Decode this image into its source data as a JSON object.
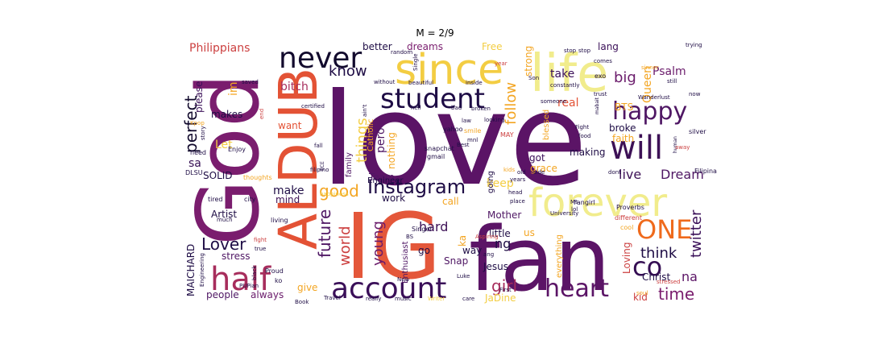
{
  "title": "M = 2/9",
  "words": [
    {
      "text": "love",
      "color": "#5b1466",
      "size": 158
    },
    {
      "text": "God",
      "color": "#7a1d6e",
      "size": 106
    },
    {
      "text": "IG",
      "color": "#e4573a",
      "size": 112
    },
    {
      "text": "fan",
      "color": "#5b1466",
      "size": 110
    },
    {
      "text": "ALDUB",
      "color": "#e35235",
      "size": 66
    },
    {
      "text": "life",
      "color": "#f1ec8c",
      "size": 64
    },
    {
      "text": "since",
      "color": "#f3cd42",
      "size": 52
    },
    {
      "text": "forever",
      "color": "#f1ec8c",
      "size": 48
    },
    {
      "text": "half",
      "color": "#a72d5c",
      "size": 40
    },
    {
      "text": "account",
      "color": "#3a0f58",
      "size": 36
    },
    {
      "text": "never",
      "color": "#120a2d",
      "size": 36
    },
    {
      "text": "student",
      "color": "#1e0c45",
      "size": 34
    },
    {
      "text": "happy",
      "color": "#4f1764",
      "size": 30
    },
    {
      "text": "will",
      "color": "#3d1156",
      "size": 40
    },
    {
      "text": "heart",
      "color": "#5b1466",
      "size": 30
    },
    {
      "text": "ONE",
      "color": "#ef6a1c",
      "size": 32
    },
    {
      "text": "co",
      "color": "#350e53",
      "size": 32
    },
    {
      "text": "Instagram",
      "color": "#1e0c45",
      "size": 24
    },
    {
      "text": "perfect",
      "color": "#120a2d",
      "size": 20
    },
    {
      "text": "future",
      "color": "#4f1764",
      "size": 20
    },
    {
      "text": "Lover",
      "color": "#1e0c45",
      "size": 20
    },
    {
      "text": "good",
      "color": "#f3a522",
      "size": 20
    },
    {
      "text": "girl",
      "color": "#a72d5c",
      "size": 20
    },
    {
      "text": "time",
      "color": "#7a1d6e",
      "size": 20
    },
    {
      "text": "big",
      "color": "#6a1b6b",
      "size": 18
    },
    {
      "text": "know",
      "color": "#1e0c45",
      "size": 18
    },
    {
      "text": "follow",
      "color": "#f3a522",
      "size": 18
    },
    {
      "text": "things",
      "color": "#f3cd42",
      "size": 18
    },
    {
      "text": "world",
      "color": "#cc4040",
      "size": 18
    },
    {
      "text": "young",
      "color": "#6a1b6b",
      "size": 18
    },
    {
      "text": "twitter",
      "color": "#3a0f58",
      "size": 18
    },
    {
      "text": "think",
      "color": "#1e0c45",
      "size": 18
    },
    {
      "text": "Dream",
      "color": "#4f1764",
      "size": 16
    },
    {
      "text": "live",
      "color": "#3d1156",
      "size": 16
    },
    {
      "text": "hard",
      "color": "#3d1156",
      "size": 16
    },
    {
      "text": "ng",
      "color": "#1e0c45",
      "size": 16
    },
    {
      "text": "na",
      "color": "#5b1466",
      "size": 16
    },
    {
      "text": "take",
      "color": "#3a0f58",
      "size": 14
    },
    {
      "text": "Queen",
      "color": "#f3a522",
      "size": 14
    },
    {
      "text": "bitch",
      "color": "#a72d5c",
      "size": 14
    },
    {
      "text": "Psalm",
      "color": "#6a1b6b",
      "size": 14
    },
    {
      "text": "dreams",
      "color": "#7a1d6e",
      "size": 12
    },
    {
      "text": "Philippians",
      "color": "#cc4040",
      "size": 14
    },
    {
      "text": "better",
      "color": "#1e0c45",
      "size": 12
    },
    {
      "text": "Free",
      "color": "#f3cd42",
      "size": 12
    },
    {
      "text": "lang",
      "color": "#3a0f58",
      "size": 12
    },
    {
      "text": "strong",
      "color": "#f3a522",
      "size": 12
    },
    {
      "text": "real",
      "color": "#e35235",
      "size": 14
    },
    {
      "text": "BTS",
      "color": "#f3a522",
      "size": 12
    },
    {
      "text": "please",
      "color": "#3a0f58",
      "size": 12
    },
    {
      "text": "im",
      "color": "#f3a522",
      "size": 14
    },
    {
      "text": "makes",
      "color": "#1e0c45",
      "size": 12
    },
    {
      "text": "want",
      "color": "#e35235",
      "size": 12
    },
    {
      "text": "Let",
      "color": "#f3cd42",
      "size": 14
    },
    {
      "text": "sa",
      "color": "#350e53",
      "size": 14
    },
    {
      "text": "SOLID",
      "color": "#1e0c45",
      "size": 12
    },
    {
      "text": "make",
      "color": "#1e0c45",
      "size": 14
    },
    {
      "text": "mind",
      "color": "#3d1156",
      "size": 12
    },
    {
      "text": "pero",
      "color": "#4f1764",
      "size": 14
    },
    {
      "text": "nothing",
      "color": "#f3a522",
      "size": 12
    },
    {
      "text": "Team",
      "color": "#4f1764",
      "size": 12
    },
    {
      "text": "keep",
      "color": "#f3cd42",
      "size": 14
    },
    {
      "text": "got",
      "color": "#3a0f58",
      "size": 12
    },
    {
      "text": "grace",
      "color": "#f3a522",
      "size": 12
    },
    {
      "text": "faith",
      "color": "#f3a522",
      "size": 12
    },
    {
      "text": "broke",
      "color": "#1e0c45",
      "size": 12
    },
    {
      "text": "making",
      "color": "#1e0c45",
      "size": 12
    },
    {
      "text": "blessed",
      "color": "#f3a522",
      "size": 10
    },
    {
      "text": "Artist",
      "color": "#1e0c45",
      "size": 12
    },
    {
      "text": "work",
      "color": "#1e0c45",
      "size": 12
    },
    {
      "text": "call",
      "color": "#f3a522",
      "size": 12
    },
    {
      "text": "Mother",
      "color": "#4f1764",
      "size": 12
    },
    {
      "text": "little",
      "color": "#1e0c45",
      "size": 12
    },
    {
      "text": "us",
      "color": "#f3a522",
      "size": 12
    },
    {
      "text": "ka",
      "color": "#f3a522",
      "size": 12
    },
    {
      "text": "go",
      "color": "#1e0c45",
      "size": 12
    },
    {
      "text": "way",
      "color": "#1e0c45",
      "size": 12
    },
    {
      "text": "Snap",
      "color": "#4f1764",
      "size": 12
    },
    {
      "text": "Jesus",
      "color": "#1e0c45",
      "size": 12
    },
    {
      "text": "Enthusiast",
      "color": "#4f1764",
      "size": 10
    },
    {
      "text": "Loving",
      "color": "#cc4040",
      "size": 12
    },
    {
      "text": "everything",
      "color": "#f3a522",
      "size": 10
    },
    {
      "text": "Christ",
      "color": "#1e0c45",
      "size": 12
    },
    {
      "text": "kid",
      "color": "#cc4040",
      "size": 12
    },
    {
      "text": "JaDine",
      "color": "#f3cd42",
      "size": 12
    },
    {
      "text": "give",
      "color": "#f3a522",
      "size": 12
    },
    {
      "text": "people",
      "color": "#4f1764",
      "size": 12
    },
    {
      "text": "always",
      "color": "#6a1b6b",
      "size": 12
    },
    {
      "text": "stress",
      "color": "#4f1764",
      "size": 12
    },
    {
      "text": "MAICHARD",
      "color": "#1e0c45",
      "size": 12
    },
    {
      "text": "going",
      "color": "#1e0c45",
      "size": 10
    },
    {
      "text": "Engineer",
      "color": "#1e0c45",
      "size": 10
    },
    {
      "text": "snapchat",
      "color": "#1e0c45",
      "size": 8
    },
    {
      "text": "gmail",
      "color": "#1e0c45",
      "size": 8
    },
    {
      "text": "family",
      "color": "#4f1764",
      "size": 10
    },
    {
      "text": "Catholic",
      "color": "#f3a522",
      "size": 10
    },
    {
      "text": "yahoo",
      "color": "#1e0c45",
      "size": 8
    },
    {
      "text": "smile",
      "color": "#f3a522",
      "size": 8
    },
    {
      "text": "MAY",
      "color": "#cc4040",
      "size": 8
    },
    {
      "text": "Fangirl",
      "color": "#1e0c45",
      "size": 8
    },
    {
      "text": "Proverbs",
      "color": "#1e0c45",
      "size": 8
    },
    {
      "text": "University",
      "color": "#1e0c45",
      "size": 7
    },
    {
      "text": "Singer",
      "color": "#1e0c45",
      "size": 8
    },
    {
      "text": "Aspiring",
      "color": "#cc4040",
      "size": 7
    },
    {
      "text": "Ms",
      "color": "#1e0c45",
      "size": 7
    },
    {
      "text": "lol",
      "color": "#1e0c45",
      "size": 7
    },
    {
      "text": "silver",
      "color": "#1e0c45",
      "size": 8
    },
    {
      "text": "Filipina",
      "color": "#1e0c45",
      "size": 8
    },
    {
      "text": "different",
      "color": "#cc4040",
      "size": 8
    },
    {
      "text": "cool",
      "color": "#f3a522",
      "size": 8
    },
    {
      "text": "stressed",
      "color": "#cc4040",
      "size": 7
    },
    {
      "text": "soul",
      "color": "#f3a522",
      "size": 7
    },
    {
      "text": "Luke",
      "color": "#1e0c45",
      "size": 7
    },
    {
      "text": "care",
      "color": "#1e0c45",
      "size": 7
    },
    {
      "text": "First",
      "color": "#1e0c45",
      "size": 7
    },
    {
      "text": "Writer",
      "color": "#f3cd42",
      "size": 7
    },
    {
      "text": "Travel",
      "color": "#1e0c45",
      "size": 7
    },
    {
      "text": "really",
      "color": "#1e0c45",
      "size": 7
    },
    {
      "text": "music",
      "color": "#1e0c45",
      "size": 7
    },
    {
      "text": "Book",
      "color": "#1e0c45",
      "size": 7
    },
    {
      "text": "PUPian",
      "color": "#1e0c45",
      "size": 7
    },
    {
      "text": "Engineering",
      "color": "#1e0c45",
      "size": 7
    },
    {
      "text": "black",
      "color": "#1e0c45",
      "size": 7
    },
    {
      "text": "Proud",
      "color": "#1e0c45",
      "size": 8
    },
    {
      "text": "ko",
      "color": "#1e0c45",
      "size": 8
    },
    {
      "text": "true",
      "color": "#1e0c45",
      "size": 7
    },
    {
      "text": "fight",
      "color": "#cc4040",
      "size": 7
    },
    {
      "text": "living",
      "color": "#1e0c45",
      "size": 8
    },
    {
      "text": "city",
      "color": "#1e0c45",
      "size": 8
    },
    {
      "text": "tired",
      "color": "#1e0c45",
      "size": 8
    },
    {
      "text": "much",
      "color": "#1e0c45",
      "size": 7
    },
    {
      "text": "happiness",
      "color": "#f3cd42",
      "size": 7
    },
    {
      "text": "thoughts",
      "color": "#f3a522",
      "size": 8
    },
    {
      "text": "DLSU",
      "color": "#1e0c45",
      "size": 8
    },
    {
      "text": "Enjoy",
      "color": "#1e0c45",
      "size": 8
    },
    {
      "text": "need",
      "color": "#1e0c45",
      "size": 8
    },
    {
      "text": "story",
      "color": "#1e0c45",
      "size": 7
    },
    {
      "text": "Kpop",
      "color": "#f3a522",
      "size": 7
    },
    {
      "text": "saved",
      "color": "#1e0c45",
      "size": 7
    },
    {
      "text": "end",
      "color": "#cc4040",
      "size": 7
    },
    {
      "text": "certified",
      "color": "#1e0c45",
      "size": 7
    },
    {
      "text": "hell",
      "color": "#1e0c45",
      "size": 7
    },
    {
      "text": "bad",
      "color": "#1e0c45",
      "size": 7
    },
    {
      "text": "broken",
      "color": "#1e0c45",
      "size": 7
    },
    {
      "text": "law",
      "color": "#1e0c45",
      "size": 7
    },
    {
      "text": "looking",
      "color": "#1e0c45",
      "size": 7
    },
    {
      "text": "beautiful",
      "color": "#1e0c45",
      "size": 7
    },
    {
      "text": "inside",
      "color": "#1e0c45",
      "size": 7
    },
    {
      "text": "without",
      "color": "#1e0c45",
      "size": 7
    },
    {
      "text": "Single",
      "color": "#1e0c45",
      "size": 7
    },
    {
      "text": "random",
      "color": "#1e0c45",
      "size": 7
    },
    {
      "text": "Son",
      "color": "#1e0c45",
      "size": 7
    },
    {
      "text": "year",
      "color": "#cc4040",
      "size": 7
    },
    {
      "text": "stop",
      "color": "#1e0c45",
      "size": 7
    },
    {
      "text": "comes",
      "color": "#1e0c45",
      "size": 7
    },
    {
      "text": "constantly",
      "color": "#1e0c45",
      "size": 7
    },
    {
      "text": "exo",
      "color": "#1e0c45",
      "size": 8
    },
    {
      "text": "trust",
      "color": "#1e0c45",
      "size": 7
    },
    {
      "text": "Wanderlust",
      "color": "#1e0c45",
      "size": 7
    },
    {
      "text": "sinner",
      "color": "#f3a522",
      "size": 7
    },
    {
      "text": "still",
      "color": "#1e0c45",
      "size": 7
    },
    {
      "text": "now",
      "color": "#1e0c45",
      "size": 7
    },
    {
      "text": "trying",
      "color": "#1e0c45",
      "size": 7
    },
    {
      "text": "mabait",
      "color": "#1e0c45",
      "size": 6
    },
    {
      "text": "someone",
      "color": "#1e0c45",
      "size": 7
    },
    {
      "text": "Fight",
      "color": "#1e0c45",
      "size": 7
    },
    {
      "text": "food",
      "color": "#1e0c45",
      "size": 7
    },
    {
      "text": "dont",
      "color": "#1e0c45",
      "size": 7
    },
    {
      "text": "human",
      "color": "#1e0c45",
      "size": 6
    },
    {
      "text": "away",
      "color": "#cc4040",
      "size": 7
    },
    {
      "text": "kids",
      "color": "#f3a522",
      "size": 7
    },
    {
      "text": "old",
      "color": "#1e0c45",
      "size": 7
    },
    {
      "text": "side",
      "color": "#1e0c45",
      "size": 7
    },
    {
      "text": "years",
      "color": "#1e0c45",
      "size": 7
    },
    {
      "text": "head",
      "color": "#1e0c45",
      "size": 7
    },
    {
      "text": "place",
      "color": "#1e0c45",
      "size": 7
    },
    {
      "text": "filipino",
      "color": "#1e0c45",
      "size": 7
    },
    {
      "text": "mnl",
      "color": "#1e0c45",
      "size": 7
    },
    {
      "text": "Best",
      "color": "#1e0c45",
      "size": 7
    },
    {
      "text": "ECE",
      "color": "#1e0c45",
      "size": 6
    },
    {
      "text": "BS",
      "color": "#1e0c45",
      "size": 7
    },
    {
      "text": "New",
      "color": "#1e0c45",
      "size": 7
    },
    {
      "text": "ang",
      "color": "#1e0c45",
      "size": 7
    },
    {
      "text": "fall",
      "color": "#1e0c45",
      "size": 7
    },
    {
      "text": "stop",
      "color": "#1e0c45",
      "size": 7
    },
    {
      "text": "ain't",
      "color": "#1e0c45",
      "size": 7
    }
  ]
}
